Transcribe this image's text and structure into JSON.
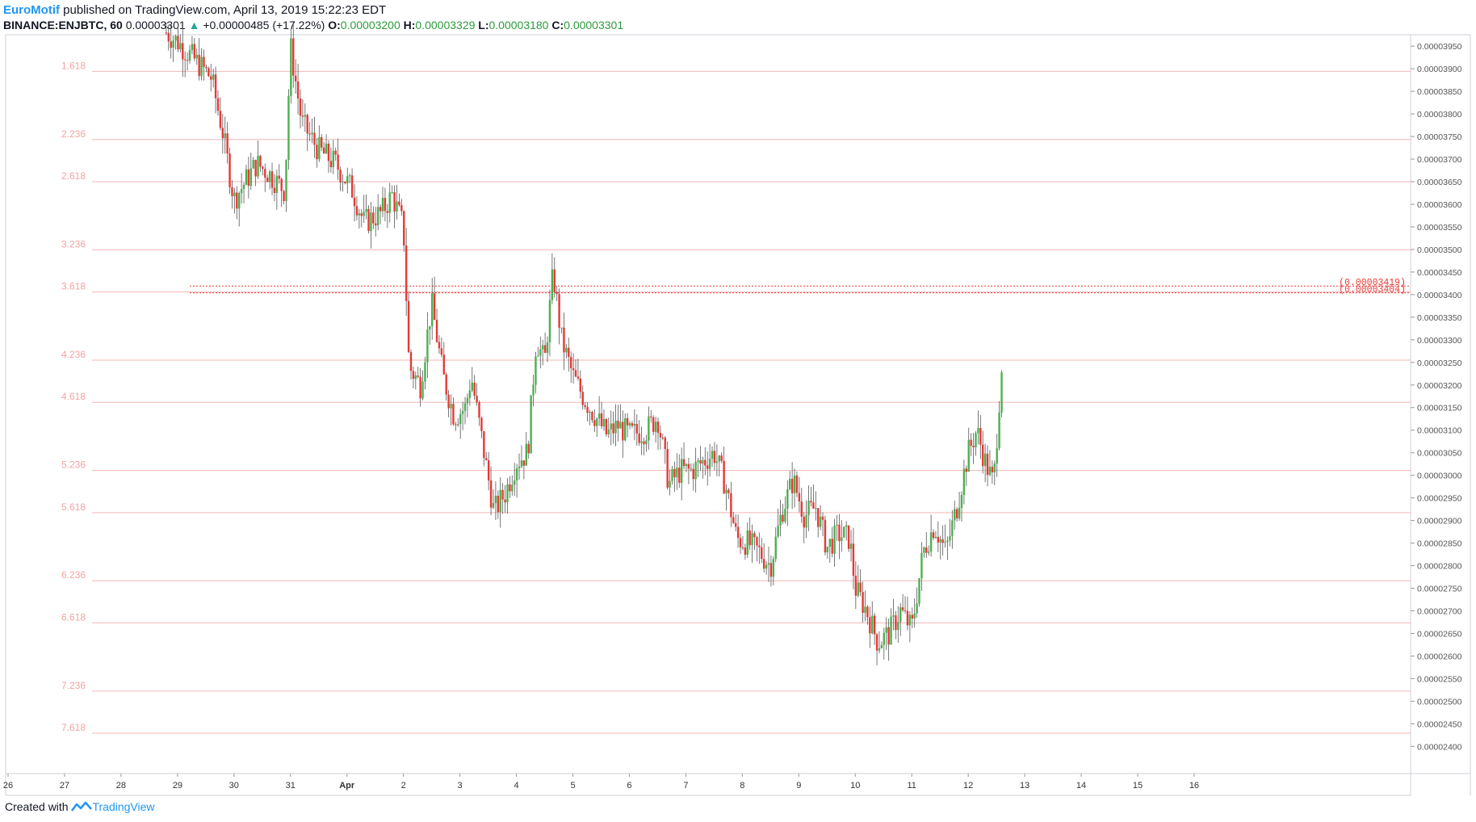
{
  "header": {
    "author": "EuroMotif",
    "published_text": "published on TradingView.com, April 13, 2019 15:22:23 EDT",
    "symbol": "BINANCE:ENJBTC, 60",
    "last": "0.00003301",
    "change_arrow": "▲",
    "change": "+0.00000485 (+17.22%)",
    "o_label": "O:",
    "o_value": "0.00003200",
    "h_label": "H:",
    "h_value": "0.00003329",
    "l_label": "L:",
    "l_value": "0.00003180",
    "c_label": "C:",
    "c_value": "0.00003301"
  },
  "footer": {
    "created_with": "Created with",
    "brand": "TradingView",
    "logo_icon": "tradingview-logo-icon"
  },
  "colors": {
    "up": "#4caf50",
    "down": "#e53935",
    "fib": "#f4b6b6",
    "fib_text": "#f0a3a3",
    "level": "#e53935",
    "grid": "#e0e3eb",
    "axis_text": "#555555"
  },
  "chart_data": {
    "type": "candlestick",
    "symbol": "ENJBTC",
    "timeframe": "60",
    "y_axis_ticks": [
      "0.00002400",
      "0.00002450",
      "0.00002500",
      "0.00002550",
      "0.00002600",
      "0.00002650",
      "0.00002700",
      "0.00002750",
      "0.00002800",
      "0.00002850",
      "0.00002900",
      "0.00002950",
      "0.00003000",
      "0.00003050",
      "0.00003100",
      "0.00003150",
      "0.00003200",
      "0.00003250",
      "0.00003300",
      "0.00003350",
      "0.00003400",
      "0.00003450",
      "0.00003500",
      "0.00003550",
      "0.00003600",
      "0.00003650",
      "0.00003700",
      "0.00003750",
      "0.00003800",
      "0.00003850",
      "0.00003900",
      "0.00003950"
    ],
    "ylim": [
      2.372e-05,
      3.995e-05
    ],
    "x_axis_ticks": [
      "26",
      "27",
      "28",
      "29",
      "30",
      "31",
      "Apr",
      "2",
      "3",
      "4",
      "5",
      "6",
      "7",
      "8",
      "9",
      "10",
      "11",
      "12",
      "13",
      "14",
      "15",
      "16"
    ],
    "fib_levels": [
      {
        "label": "1.618",
        "price": 3.8943e-05
      },
      {
        "label": "2.236",
        "price": 3.7434e-05
      },
      {
        "label": "2.618",
        "price": 3.6501e-05
      },
      {
        "label": "3.236",
        "price": 3.4992e-05
      },
      {
        "label": "3.618",
        "price": 3.4059e-05
      },
      {
        "label": "4.236",
        "price": 3.255e-05
      },
      {
        "label": "4.618",
        "price": 3.1617e-05
      },
      {
        "label": "5.236",
        "price": 3.0108e-05
      },
      {
        "label": "5.618",
        "price": 2.9175e-05
      },
      {
        "label": "6.236",
        "price": 2.7666e-05
      },
      {
        "label": "6.618",
        "price": 2.6733e-05
      },
      {
        "label": "7.236",
        "price": 2.5224e-05
      },
      {
        "label": "7.618",
        "price": 2.4291e-05
      }
    ],
    "price_levels": [
      {
        "label": "(0.00003419)",
        "price": 3.419e-05
      },
      {
        "label": "(0.00003404)",
        "price": 3.404e-05
      }
    ],
    "path_points": [
      [
        28.8,
        3.98e-05
      ],
      [
        29.0,
        3.96e-05
      ],
      [
        29.3,
        3.92e-05
      ],
      [
        29.6,
        3.88e-05
      ],
      [
        29.8,
        3.76e-05
      ],
      [
        30.0,
        3.61e-05
      ],
      [
        30.2,
        3.65e-05
      ],
      [
        30.4,
        3.69e-05
      ],
      [
        30.6,
        3.67e-05
      ],
      [
        30.9,
        3.63e-05
      ],
      [
        31.0,
        3.95e-05
      ],
      [
        31.2,
        3.78e-05
      ],
      [
        31.5,
        3.72e-05
      ],
      [
        31.8,
        3.69e-05
      ],
      [
        32.1,
        3.63e-05
      ],
      [
        32.3,
        3.56e-05
      ],
      [
        32.6,
        3.58e-05
      ],
      [
        32.8,
        3.62e-05
      ],
      [
        33.0,
        3.55e-05
      ],
      [
        33.1,
        3.24e-05
      ],
      [
        33.3,
        3.2e-05
      ],
      [
        33.5,
        3.38e-05
      ],
      [
        33.7,
        3.22e-05
      ],
      [
        33.9,
        3.13e-05
      ],
      [
        34.1,
        3.15e-05
      ],
      [
        34.2,
        3.22e-05
      ],
      [
        34.4,
        3.07e-05
      ],
      [
        34.6,
        2.92e-05
      ],
      [
        34.8,
        2.96e-05
      ],
      [
        35.0,
        3.03e-05
      ],
      [
        35.2,
        3.05e-05
      ],
      [
        35.35,
        3.3e-05
      ],
      [
        35.5,
        3.25e-05
      ],
      [
        35.65,
        3.45e-05
      ],
      [
        35.8,
        3.3e-05
      ],
      [
        36.0,
        3.22e-05
      ],
      [
        36.2,
        3.17e-05
      ],
      [
        36.4,
        3.13e-05
      ],
      [
        36.6,
        3.09e-05
      ],
      [
        36.8,
        3.11e-05
      ],
      [
        37.0,
        3.09e-05
      ],
      [
        37.3,
        3.1e-05
      ],
      [
        37.5,
        3.13e-05
      ],
      [
        37.7,
        2.98e-05
      ],
      [
        37.9,
        3.01e-05
      ],
      [
        38.1,
        3.01e-05
      ],
      [
        38.3,
        3.03e-05
      ],
      [
        38.5,
        3.05e-05
      ],
      [
        38.7,
        2.98e-05
      ],
      [
        38.9,
        2.86e-05
      ],
      [
        39.1,
        2.85e-05
      ],
      [
        39.3,
        2.83e-05
      ],
      [
        39.5,
        2.8e-05
      ],
      [
        39.7,
        2.92e-05
      ],
      [
        39.9,
        2.99e-05
      ],
      [
        40.1,
        2.91e-05
      ],
      [
        40.3,
        2.93e-05
      ],
      [
        40.5,
        2.84e-05
      ],
      [
        40.7,
        2.87e-05
      ],
      [
        40.9,
        2.86e-05
      ],
      [
        41.0,
        2.75e-05
      ],
      [
        41.2,
        2.7e-05
      ],
      [
        41.4,
        2.63e-05
      ],
      [
        41.6,
        2.65e-05
      ],
      [
        41.8,
        2.7e-05
      ],
      [
        42.0,
        2.66e-05
      ],
      [
        42.2,
        2.83e-05
      ],
      [
        42.4,
        2.89e-05
      ],
      [
        42.6,
        2.83e-05
      ],
      [
        42.8,
        2.93e-05
      ],
      [
        43.0,
        3.05e-05
      ],
      [
        43.15,
        3.1e-05
      ],
      [
        43.3,
        3.03e-05
      ],
      [
        43.45,
        2.98e-05
      ],
      [
        43.6,
        3.26e-05
      ]
    ]
  }
}
